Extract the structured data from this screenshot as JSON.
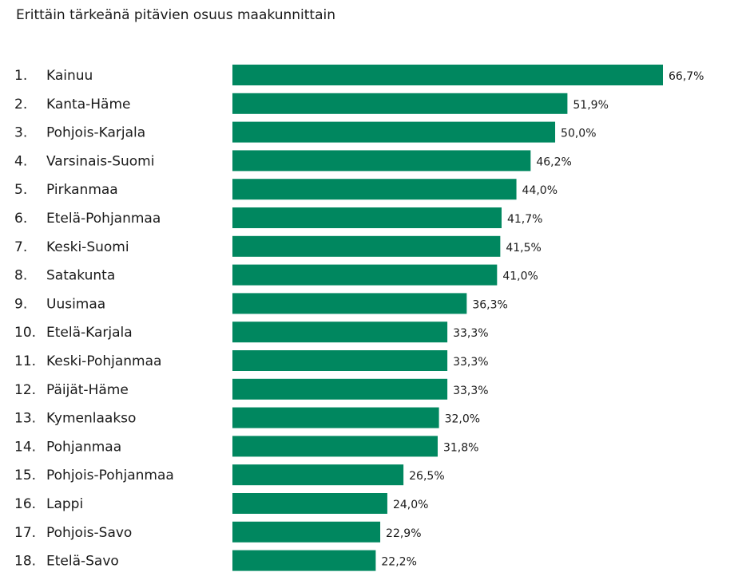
{
  "chart_data": {
    "type": "bar",
    "orientation": "horizontal",
    "title": "Erittäin tärkeänä pitävien osuus maakunnittain",
    "ranks": [
      "1.",
      "2.",
      "3.",
      "4.",
      "5.",
      "6.",
      "7.",
      "8.",
      "9.",
      "10.",
      "11.",
      "12.",
      "13.",
      "14.",
      "15.",
      "16.",
      "17.",
      "18."
    ],
    "categories": [
      "Kainuu",
      "Kanta-Häme",
      "Pohjois-Karjala",
      "Varsinais-Suomi",
      "Pirkanmaa",
      "Etelä-Pohjanmaa",
      "Keski-Suomi",
      "Satakunta",
      "Uusimaa",
      "Etelä-Karjala",
      "Keski-Pohjanmaa",
      "Päijät-Häme",
      "Kymenlaakso",
      "Pohjanmaa",
      "Pohjois-Pohjanmaa",
      "Lappi",
      "Pohjois-Savo",
      "Etelä-Savo"
    ],
    "values": [
      66.7,
      51.9,
      50.0,
      46.2,
      44.0,
      41.7,
      41.5,
      41.0,
      36.3,
      33.3,
      33.3,
      33.3,
      32.0,
      31.8,
      26.5,
      24.0,
      22.9,
      22.2
    ],
    "value_labels": [
      "66,7%",
      "51,9%",
      "50,0%",
      "46,2%",
      "44,0%",
      "41,7%",
      "41,5%",
      "41,0%",
      "36,3%",
      "33,3%",
      "33,3%",
      "33,3%",
      "32,0%",
      "31,8%",
      "26,5%",
      "24,0%",
      "22,9%",
      "22,2%"
    ],
    "bar_color": "#00875f",
    "grid": false,
    "legend": "none"
  }
}
